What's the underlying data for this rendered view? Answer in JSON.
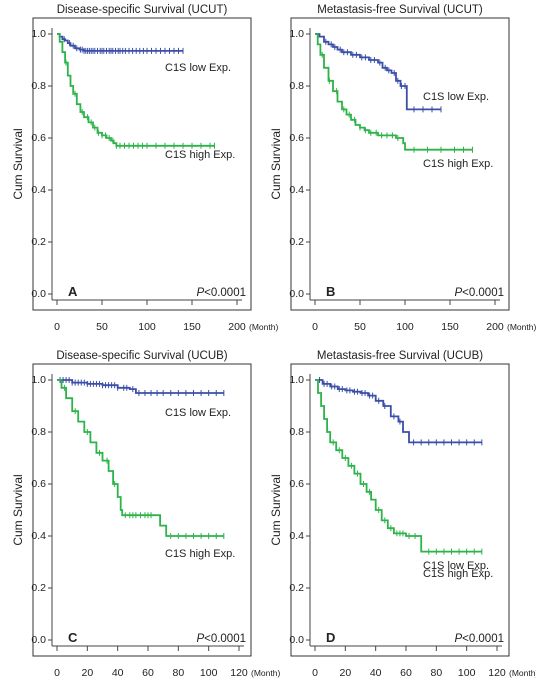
{
  "colors": {
    "low": "#3b4ea8",
    "high": "#2db34a",
    "axis": "#444444",
    "frame": "#333333"
  },
  "chart_data": [
    {
      "type": "line",
      "panel": "A",
      "title": "Disease-specific Survival (UCUT)",
      "ylabel": "Cum Survival",
      "xunit": "(Month)",
      "xticks": [
        0,
        50,
        100,
        150,
        200
      ],
      "yticks": [
        "0.0",
        "0.2",
        "0.4",
        "0.6",
        "0.8",
        "1.0"
      ],
      "xlim": [
        0,
        200
      ],
      "ylim": [
        0,
        1
      ],
      "pvalue_prefix": "P",
      "pvalue_rest": "<0.0001",
      "series": [
        {
          "name": "C1S low Exp.",
          "color_key": "low",
          "points": [
            [
              0,
              1.0
            ],
            [
              3,
              0.99
            ],
            [
              6,
              0.98
            ],
            [
              9,
              0.975
            ],
            [
              12,
              0.965
            ],
            [
              15,
              0.955
            ],
            [
              20,
              0.945
            ],
            [
              25,
              0.94
            ],
            [
              30,
              0.935
            ],
            [
              40,
              0.935
            ],
            [
              60,
              0.935
            ],
            [
              100,
              0.935
            ],
            [
              140,
              0.935
            ]
          ],
          "censor_x": [
            8,
            14,
            18,
            22,
            26,
            28,
            30,
            32,
            34,
            36,
            38,
            40,
            42,
            45,
            48,
            50,
            52,
            55,
            58,
            60,
            62,
            65,
            68,
            70,
            73,
            76,
            80,
            84,
            88,
            92,
            96,
            100,
            105,
            110,
            115,
            120,
            125,
            130,
            135,
            140
          ]
        },
        {
          "name": "C1S high Exp.",
          "color_key": "high",
          "points": [
            [
              0,
              1.0
            ],
            [
              3,
              0.97
            ],
            [
              6,
              0.93
            ],
            [
              9,
              0.89
            ],
            [
              12,
              0.84
            ],
            [
              15,
              0.8
            ],
            [
              18,
              0.77
            ],
            [
              22,
              0.73
            ],
            [
              26,
              0.7
            ],
            [
              30,
              0.68
            ],
            [
              35,
              0.66
            ],
            [
              40,
              0.64
            ],
            [
              45,
              0.62
            ],
            [
              50,
              0.61
            ],
            [
              55,
              0.6
            ],
            [
              60,
              0.59
            ],
            [
              63,
              0.58
            ],
            [
              66,
              0.57
            ],
            [
              80,
              0.57
            ],
            [
              120,
              0.57
            ],
            [
              175,
              0.57
            ]
          ],
          "censor_x": [
            10,
            20,
            28,
            34,
            38,
            42,
            46,
            50,
            54,
            58,
            62,
            66,
            70,
            75,
            80,
            85,
            90,
            95,
            100,
            110,
            120,
            130,
            140,
            150,
            160,
            170,
            175
          ]
        }
      ]
    },
    {
      "type": "line",
      "panel": "B",
      "title": "Metastasis-free Survival (UCUT)",
      "ylabel": "Cum Survival",
      "xunit": "(Month)",
      "xticks": [
        0,
        50,
        100,
        150,
        200
      ],
      "yticks": [
        "0.0",
        "0.2",
        "0.4",
        "0.6",
        "0.8",
        "1.0"
      ],
      "xlim": [
        0,
        200
      ],
      "ylim": [
        0,
        1
      ],
      "pvalue_prefix": "P",
      "pvalue_rest": "<0.0001",
      "series": [
        {
          "name": "C1S low Exp.",
          "color_key": "low",
          "points": [
            [
              0,
              1.0
            ],
            [
              5,
              0.99
            ],
            [
              10,
              0.97
            ],
            [
              15,
              0.96
            ],
            [
              20,
              0.95
            ],
            [
              25,
              0.94
            ],
            [
              30,
              0.93
            ],
            [
              40,
              0.92
            ],
            [
              50,
              0.91
            ],
            [
              60,
              0.9
            ],
            [
              70,
              0.89
            ],
            [
              75,
              0.87
            ],
            [
              80,
              0.86
            ],
            [
              85,
              0.85
            ],
            [
              90,
              0.82
            ],
            [
              95,
              0.8
            ],
            [
              102,
              0.8
            ],
            [
              102,
              0.71
            ],
            [
              140,
              0.71
            ]
          ],
          "censor_x": [
            12,
            18,
            22,
            28,
            32,
            36,
            42,
            46,
            52,
            56,
            62,
            66,
            72,
            78,
            82,
            88,
            92,
            96,
            100,
            110,
            120,
            130,
            140
          ]
        },
        {
          "name": "C1S high Exp.",
          "color_key": "high",
          "points": [
            [
              0,
              1.0
            ],
            [
              3,
              0.96
            ],
            [
              6,
              0.92
            ],
            [
              10,
              0.87
            ],
            [
              15,
              0.82
            ],
            [
              20,
              0.78
            ],
            [
              25,
              0.74
            ],
            [
              30,
              0.71
            ],
            [
              35,
              0.69
            ],
            [
              40,
              0.67
            ],
            [
              45,
              0.65
            ],
            [
              50,
              0.64
            ],
            [
              55,
              0.63
            ],
            [
              60,
              0.62
            ],
            [
              70,
              0.61
            ],
            [
              90,
              0.6
            ],
            [
              98,
              0.58
            ],
            [
              100,
              0.555
            ],
            [
              175,
              0.555
            ]
          ],
          "censor_x": [
            8,
            16,
            24,
            32,
            38,
            44,
            50,
            56,
            62,
            68,
            74,
            80,
            86,
            92,
            110,
            125,
            140,
            155,
            165,
            175
          ]
        }
      ]
    },
    {
      "type": "line",
      "panel": "C",
      "title": "Disease-specific Survival (UCUB)",
      "ylabel": "Cum Survival",
      "xunit": "(Month)",
      "xticks": [
        0,
        20,
        40,
        60,
        80,
        100,
        120
      ],
      "yticks": [
        "0.0",
        "0.2",
        "0.4",
        "0.6",
        "0.8",
        "1.0"
      ],
      "xlim": [
        0,
        120
      ],
      "ylim": [
        0,
        1
      ],
      "pvalue_prefix": "P",
      "pvalue_rest": "<0.0001",
      "series": [
        {
          "name": "C1S low Exp.",
          "color_key": "low",
          "points": [
            [
              0,
              1.0
            ],
            [
              10,
              0.99
            ],
            [
              20,
              0.985
            ],
            [
              30,
              0.98
            ],
            [
              40,
              0.97
            ],
            [
              48,
              0.965
            ],
            [
              52,
              0.95
            ],
            [
              110,
              0.95
            ]
          ],
          "censor_x": [
            2,
            4,
            6,
            8,
            10,
            12,
            14,
            16,
            18,
            20,
            22,
            24,
            26,
            28,
            30,
            32,
            34,
            36,
            38,
            40,
            44,
            46,
            50,
            54,
            58,
            62,
            66,
            70,
            75,
            80,
            85,
            90,
            95,
            100,
            105,
            110
          ]
        },
        {
          "name": "C1S high Exp.",
          "color_key": "high",
          "points": [
            [
              0,
              1.0
            ],
            [
              3,
              0.97
            ],
            [
              6,
              0.93
            ],
            [
              10,
              0.88
            ],
            [
              14,
              0.84
            ],
            [
              18,
              0.8
            ],
            [
              22,
              0.76
            ],
            [
              26,
              0.72
            ],
            [
              30,
              0.69
            ],
            [
              34,
              0.65
            ],
            [
              37,
              0.6
            ],
            [
              40,
              0.55
            ],
            [
              42,
              0.5
            ],
            [
              43,
              0.48
            ],
            [
              65,
              0.48
            ],
            [
              68,
              0.44
            ],
            [
              72,
              0.4
            ],
            [
              110,
              0.4
            ]
          ],
          "censor_x": [
            5,
            12,
            20,
            28,
            33,
            38,
            45,
            48,
            50,
            52,
            55,
            58,
            60,
            62,
            75,
            80,
            85,
            90,
            95,
            100,
            105,
            110
          ]
        }
      ]
    },
    {
      "type": "line",
      "panel": "D",
      "title": "Metastasis-free Survival (UCUB)",
      "ylabel": "Cum Survival",
      "xunit": "(Month)",
      "xticks": [
        0,
        20,
        40,
        60,
        80,
        100,
        120
      ],
      "yticks": [
        "0.0",
        "0.2",
        "0.4",
        "0.6",
        "0.8",
        "1.0"
      ],
      "xlim": [
        0,
        120
      ],
      "ylim": [
        0,
        1
      ],
      "pvalue_prefix": "P",
      "pvalue_rest": "<0.0001",
      "series": [
        {
          "name": "C1S low Exp.",
          "color_key": "low",
          "points": [
            [
              0,
              1.0
            ],
            [
              5,
              0.985
            ],
            [
              10,
              0.975
            ],
            [
              15,
              0.965
            ],
            [
              20,
              0.96
            ],
            [
              25,
              0.955
            ],
            [
              30,
              0.95
            ],
            [
              35,
              0.94
            ],
            [
              40,
              0.92
            ],
            [
              45,
              0.9
            ],
            [
              50,
              0.86
            ],
            [
              55,
              0.84
            ],
            [
              58,
              0.8
            ],
            [
              62,
              0.76
            ],
            [
              110,
              0.76
            ]
          ],
          "censor_x": [
            3,
            6,
            8,
            11,
            13,
            16,
            18,
            21,
            23,
            26,
            28,
            31,
            33,
            36,
            38,
            42,
            46,
            52,
            56,
            65,
            70,
            75,
            80,
            85,
            90,
            95,
            100,
            105,
            110
          ]
        },
        {
          "name": "C1S high Exp.",
          "color_key": "high",
          "points": [
            [
              0,
              1.0
            ],
            [
              2,
              0.95
            ],
            [
              4,
              0.9
            ],
            [
              6,
              0.85
            ],
            [
              8,
              0.8
            ],
            [
              10,
              0.76
            ],
            [
              14,
              0.73
            ],
            [
              18,
              0.7
            ],
            [
              22,
              0.67
            ],
            [
              26,
              0.64
            ],
            [
              30,
              0.6
            ],
            [
              34,
              0.57
            ],
            [
              37,
              0.54
            ],
            [
              40,
              0.5
            ],
            [
              44,
              0.46
            ],
            [
              48,
              0.43
            ],
            [
              52,
              0.41
            ],
            [
              60,
              0.4
            ],
            [
              68,
              0.4
            ],
            [
              70,
              0.34
            ],
            [
              110,
              0.34
            ]
          ],
          "censor_x": [
            12,
            16,
            20,
            24,
            28,
            32,
            36,
            42,
            46,
            50,
            54,
            56,
            58,
            62,
            66,
            75,
            80,
            85,
            90,
            95,
            100,
            105,
            110
          ]
        }
      ]
    }
  ]
}
